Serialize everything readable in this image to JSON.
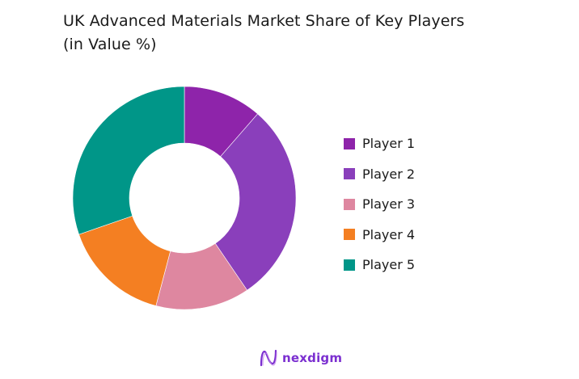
{
  "title": {
    "line1": "UK Advanced Materials Market Share of Key Players",
    "line2": "(in Value %)"
  },
  "chart_data": {
    "type": "pie",
    "subtype": "donut",
    "title": "UK Advanced Materials Market Share of Key Players (in Value %)",
    "categories": [
      "Player 1",
      "Player 2",
      "Player 3",
      "Player 4",
      "Player 5"
    ],
    "values": [
      11.4,
      29.1,
      13.6,
      15.6,
      30.3
    ],
    "colors": [
      "#8E24AA",
      "#8A3FBB",
      "#DE87A0",
      "#F47F22",
      "#009688"
    ],
    "start_angle_deg": 0,
    "direction": "clockwise",
    "legend_position": "right",
    "data_labels": false
  },
  "legend": {
    "items": [
      {
        "label": "Player 1",
        "color": "#8E24AA"
      },
      {
        "label": "Player 2",
        "color": "#8A3FBB"
      },
      {
        "label": "Player 3",
        "color": "#DE87A0"
      },
      {
        "label": "Player 4",
        "color": "#F47F22"
      },
      {
        "label": "Player 5",
        "color": "#009688"
      }
    ]
  },
  "logo": {
    "text": "nexdigm",
    "color": "#7B2FD0"
  }
}
